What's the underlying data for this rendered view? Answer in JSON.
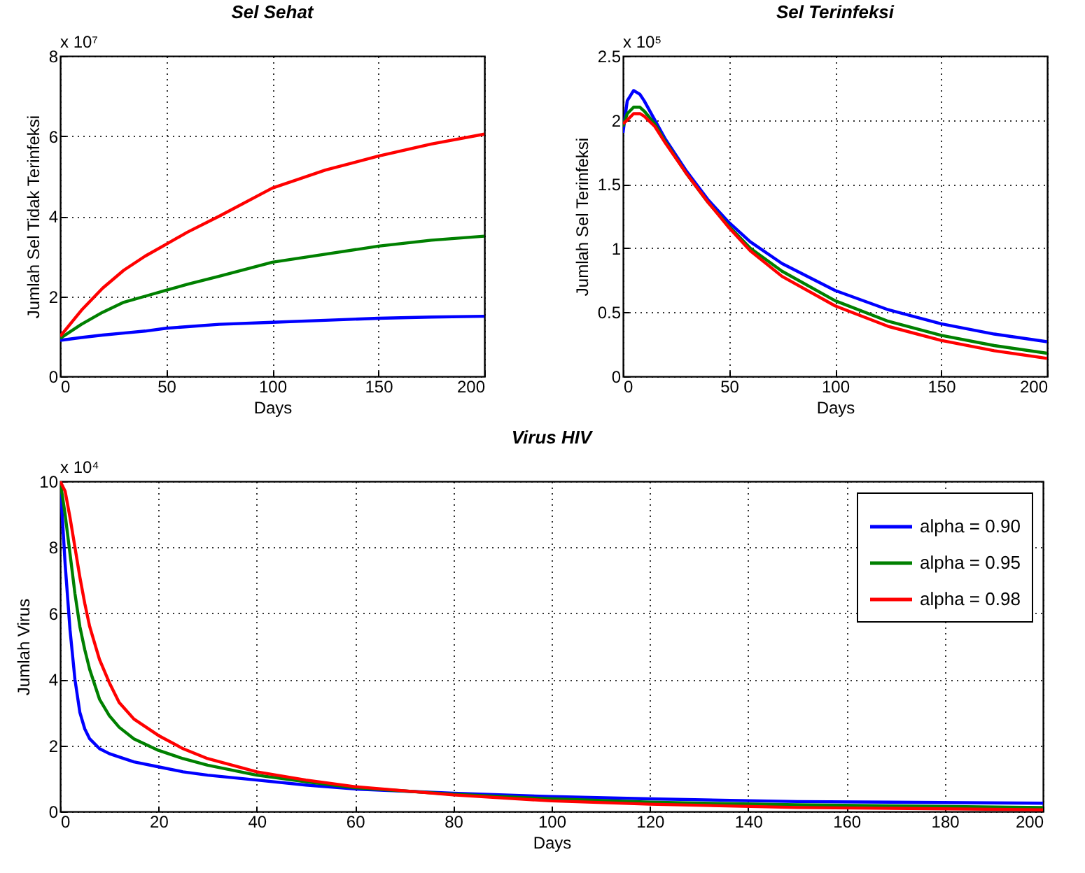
{
  "chart_data": [
    {
      "type": "line",
      "title": "Sel Sehat",
      "xlabel": "Days",
      "ylabel": "Jumlah Sel Tidak Terinfeksi",
      "annotations": [
        "x 10⁷"
      ],
      "x": [
        0,
        10,
        20,
        30,
        40,
        50,
        60,
        75,
        100,
        125,
        150,
        175,
        200
      ],
      "xlim": [
        0,
        200
      ],
      "xticks": [
        0,
        50,
        100,
        150,
        200
      ],
      "ylim": [
        0,
        8
      ],
      "yticks": [
        0,
        2,
        4,
        6,
        8
      ],
      "grid": true,
      "series": [
        {
          "color": "#0000ff",
          "values": [
            0.9,
            0.97,
            1.03,
            1.08,
            1.13,
            1.2,
            1.24,
            1.3,
            1.35,
            1.4,
            1.45,
            1.48,
            1.5
          ]
        },
        {
          "color": "#008000",
          "values": [
            0.95,
            1.3,
            1.6,
            1.85,
            2.0,
            2.15,
            2.3,
            2.5,
            2.85,
            3.05,
            3.25,
            3.4,
            3.5
          ]
        },
        {
          "color": "#ff0000",
          "values": [
            1.0,
            1.65,
            2.2,
            2.65,
            3.0,
            3.3,
            3.6,
            4.0,
            4.7,
            5.15,
            5.5,
            5.8,
            6.05
          ]
        }
      ]
    },
    {
      "type": "line",
      "title": "Sel Terinfeksi",
      "xlabel": "Days",
      "ylabel": "Jumlah Sel Terinfeksi",
      "annotations": [
        "x 10⁵"
      ],
      "x": [
        0,
        2,
        5,
        8,
        10,
        15,
        20,
        30,
        40,
        50,
        60,
        75,
        100,
        125,
        150,
        175,
        200
      ],
      "xlim": [
        0,
        200
      ],
      "xticks": [
        0,
        50,
        100,
        150,
        200
      ],
      "ylim": [
        0,
        2.5
      ],
      "yticks": [
        0,
        0.5,
        1,
        1.5,
        2,
        2.5
      ],
      "grid": true,
      "series": [
        {
          "color": "#0000ff",
          "values": [
            1.9,
            2.15,
            2.23,
            2.2,
            2.15,
            2.0,
            1.85,
            1.6,
            1.38,
            1.2,
            1.05,
            0.88,
            0.67,
            0.52,
            0.41,
            0.33,
            0.27
          ]
        },
        {
          "color": "#008000",
          "values": [
            1.95,
            2.05,
            2.1,
            2.1,
            2.07,
            1.97,
            1.83,
            1.58,
            1.36,
            1.17,
            1.0,
            0.82,
            0.59,
            0.43,
            0.32,
            0.24,
            0.18
          ]
        },
        {
          "color": "#ff0000",
          "values": [
            1.97,
            2.0,
            2.05,
            2.05,
            2.03,
            1.95,
            1.82,
            1.58,
            1.36,
            1.16,
            0.98,
            0.78,
            0.55,
            0.39,
            0.28,
            0.2,
            0.14
          ]
        }
      ]
    },
    {
      "type": "line",
      "title": "Virus HIV",
      "xlabel": "Days",
      "ylabel": "Jumlah Virus",
      "annotations": [
        "x 10⁴"
      ],
      "x": [
        0,
        1,
        2,
        3,
        4,
        5,
        6,
        8,
        10,
        12,
        15,
        20,
        25,
        30,
        40,
        50,
        60,
        80,
        100,
        120,
        150,
        200
      ],
      "xlim": [
        0,
        200
      ],
      "xticks": [
        0,
        20,
        40,
        60,
        80,
        100,
        120,
        140,
        160,
        180,
        200
      ],
      "ylim": [
        0,
        10
      ],
      "yticks": [
        0,
        2,
        4,
        6,
        8,
        10
      ],
      "grid": true,
      "legend": "top right",
      "series": [
        {
          "name": "alpha = 0.90",
          "color": "#0000ff",
          "values": [
            10,
            7.5,
            5.5,
            4.0,
            3.0,
            2.5,
            2.2,
            1.9,
            1.75,
            1.65,
            1.5,
            1.35,
            1.2,
            1.1,
            0.95,
            0.8,
            0.68,
            0.55,
            0.45,
            0.38,
            0.3,
            0.25
          ]
        },
        {
          "name": "alpha = 0.95",
          "color": "#008000",
          "values": [
            10,
            9.0,
            7.8,
            6.6,
            5.6,
            4.9,
            4.3,
            3.4,
            2.9,
            2.55,
            2.2,
            1.85,
            1.6,
            1.4,
            1.1,
            0.9,
            0.72,
            0.52,
            0.38,
            0.28,
            0.2,
            0.12
          ]
        },
        {
          "name": "alpha = 0.98",
          "color": "#ff0000",
          "values": [
            10,
            9.7,
            8.9,
            8.0,
            7.1,
            6.3,
            5.6,
            4.6,
            3.9,
            3.3,
            2.8,
            2.3,
            1.9,
            1.6,
            1.2,
            0.95,
            0.75,
            0.5,
            0.32,
            0.22,
            0.12,
            0.05
          ]
        }
      ]
    }
  ]
}
